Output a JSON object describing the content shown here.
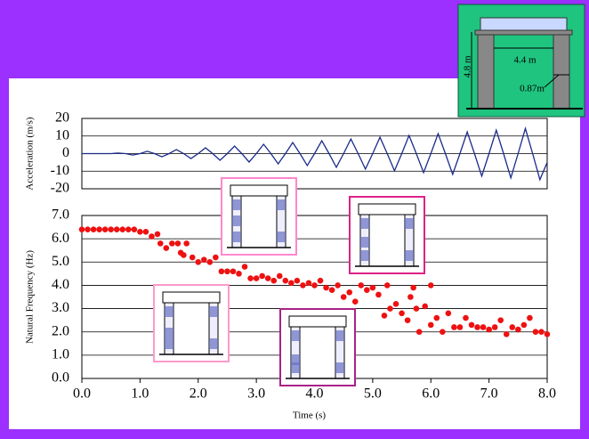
{
  "chart_data": [
    {
      "type": "line",
      "y_label": "Acceleration (m/s)",
      "x": [
        0,
        0.125,
        0.25,
        0.375,
        0.5,
        0.625,
        0.75,
        0.875,
        1,
        1.125,
        1.25,
        1.375,
        1.5,
        1.625,
        1.75,
        1.875,
        2,
        2.125,
        2.25,
        2.375,
        2.5,
        2.625,
        2.75,
        2.875,
        3,
        3.125,
        3.25,
        3.375,
        3.5,
        3.625,
        3.75,
        3.875,
        4,
        4.125,
        4.25,
        4.375,
        4.5,
        4.625,
        4.75,
        4.875,
        5,
        5.125,
        5.25,
        5.375,
        5.5,
        5.625,
        5.75,
        5.875,
        6,
        6.125,
        6.25,
        6.375,
        6.5,
        6.625,
        6.75,
        6.875,
        7,
        7.125,
        7.25,
        7.375,
        7.5,
        7.625,
        7.75,
        7.875,
        8
      ],
      "series": [
        {
          "color": "#1a2a8a",
          "values": [
            0,
            0,
            0,
            0,
            0,
            0.3,
            0,
            -0.8,
            0,
            1.3,
            0,
            -1.8,
            0,
            2.3,
            0,
            -2.8,
            0,
            3.3,
            0,
            -3.8,
            0,
            4.3,
            0,
            -4.8,
            0,
            5.3,
            0,
            -5.8,
            0,
            6.3,
            0,
            -6.8,
            0,
            7.3,
            0,
            -7.8,
            0,
            8.3,
            0,
            -8.8,
            0,
            9.3,
            0,
            -9.8,
            0,
            10.3,
            0,
            -10.8,
            0,
            11.3,
            0,
            -11.8,
            0,
            12.3,
            0,
            -12.8,
            0,
            13.3,
            0,
            -13.8,
            0,
            14.3,
            0,
            -14.8,
            -5
          ]
        }
      ],
      "xlim": [
        0,
        8
      ],
      "ylim": [
        -20,
        20
      ],
      "yticks": [
        20,
        10,
        0,
        -10,
        -20
      ],
      "grid": true
    },
    {
      "type": "scatter",
      "y_label": "Natural Frequency (Hz)",
      "x_label": "Time (s)",
      "series": [
        {
          "color": "#ee1111",
          "x": [
            0,
            0.1,
            0.2,
            0.3,
            0.4,
            0.5,
            0.6,
            0.7,
            0.8,
            0.9,
            1.0,
            1.1,
            1.2,
            1.3,
            1.35,
            1.45,
            1.55,
            1.65,
            1.7,
            1.8,
            1.75,
            1.9,
            2.0,
            2.1,
            2.2,
            2.3,
            2.4,
            2.5,
            2.6,
            2.7,
            2.8,
            2.9,
            3.0,
            3.1,
            3.2,
            3.3,
            3.4,
            3.5,
            3.6,
            3.7,
            3.8,
            3.9,
            4.0,
            4.1,
            4.2,
            4.3,
            4.4,
            4.5,
            4.6,
            4.7,
            4.8,
            4.9,
            5.0,
            5.1,
            5.2,
            5.25,
            5.3,
            5.4,
            5.5,
            5.6,
            5.65,
            5.7,
            5.75,
            5.8,
            5.9,
            6.0,
            6.0,
            6.1,
            6.2,
            6.3,
            6.4,
            6.5,
            6.6,
            6.7,
            6.8,
            6.9,
            7.0,
            7.1,
            7.2,
            7.3,
            7.4,
            7.5,
            7.6,
            7.7,
            7.8,
            7.9,
            8.0
          ],
          "values": [
            6.4,
            6.4,
            6.4,
            6.4,
            6.4,
            6.4,
            6.4,
            6.4,
            6.4,
            6.4,
            6.3,
            6.3,
            6.1,
            6.2,
            5.8,
            5.6,
            5.8,
            5.8,
            5.4,
            5.8,
            5.3,
            5.2,
            5.0,
            5.1,
            5.0,
            5.2,
            4.6,
            4.6,
            4.6,
            4.5,
            4.8,
            4.3,
            4.3,
            4.4,
            4.3,
            4.2,
            4.4,
            4.2,
            4.1,
            4.2,
            4.0,
            4.1,
            4.0,
            4.2,
            3.9,
            3.8,
            4.0,
            3.5,
            3.7,
            3.3,
            4.0,
            3.8,
            3.9,
            3.6,
            2.7,
            4.0,
            3.0,
            3.2,
            2.8,
            2.5,
            3.5,
            3.9,
            3.0,
            2.0,
            3.1,
            2.3,
            4.0,
            2.6,
            2.0,
            2.8,
            2.2,
            2.2,
            2.6,
            2.3,
            2.2,
            2.2,
            2.1,
            2.2,
            2.5,
            1.9,
            2.2,
            2.1,
            2.3,
            2.6,
            2.0,
            2.0,
            1.9
          ]
        }
      ],
      "xlim": [
        0,
        8
      ],
      "ylim": [
        0,
        7
      ],
      "xticks": [
        {
          "value": 0,
          "label": "0.0"
        },
        {
          "value": 1,
          "label": "1.0"
        },
        {
          "value": 2,
          "label": "2.0"
        },
        {
          "value": 3,
          "label": "3.0"
        },
        {
          "value": 4,
          "label": "4.0"
        },
        {
          "value": 5,
          "label": "5.0"
        },
        {
          "value": 6,
          "label": "6.0"
        },
        {
          "value": 7,
          "label": "7.0"
        },
        {
          "value": 8,
          "label": "8.0"
        }
      ],
      "yticks": [
        {
          "value": 0,
          "label": "0.0"
        },
        {
          "value": 1,
          "label": "1.0"
        },
        {
          "value": 2,
          "label": "2.0"
        },
        {
          "value": 3,
          "label": "3.0"
        },
        {
          "value": 4,
          "label": "4.0"
        },
        {
          "value": 5,
          "label": "5.0"
        },
        {
          "value": 6,
          "label": "6.0"
        },
        {
          "value": 7,
          "label": "7.0"
        }
      ],
      "grid": true
    }
  ],
  "diagram": {
    "height": "4.8 m",
    "span": "4.4 m",
    "column": "0.87m"
  }
}
